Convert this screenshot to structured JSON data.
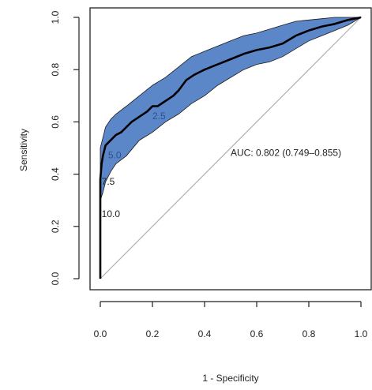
{
  "chart_data": {
    "type": "line",
    "title": "",
    "xlabel": "1 - Specificity",
    "ylabel": "Sensitivity",
    "xlim": [
      0.0,
      1.0
    ],
    "ylim": [
      0.0,
      1.0
    ],
    "xticks": [
      "0.0",
      "0.2",
      "0.4",
      "0.6",
      "0.8",
      "1.0"
    ],
    "yticks": [
      "0.0",
      "0.2",
      "0.4",
      "0.6",
      "0.8",
      "1.0"
    ],
    "grid": false,
    "colors": {
      "band_fill": "#5b87c9",
      "band_edge": "#1a1a1a",
      "roc_line": "#000000",
      "diagonal": "#b0b0b0",
      "axis": "#222222"
    },
    "series": [
      {
        "role": "roc",
        "x": [
          0,
          0,
          0,
          0.005,
          0.01,
          0.02,
          0.04,
          0.06,
          0.08,
          0.1,
          0.12,
          0.15,
          0.18,
          0.2,
          0.22,
          0.25,
          0.28,
          0.3,
          0.33,
          0.36,
          0.4,
          0.45,
          0.5,
          0.55,
          0.6,
          0.65,
          0.7,
          0.75,
          0.8,
          0.85,
          0.9,
          0.95,
          1.0
        ],
        "y": [
          0,
          0.28,
          0.38,
          0.44,
          0.47,
          0.51,
          0.53,
          0.55,
          0.56,
          0.58,
          0.6,
          0.62,
          0.64,
          0.66,
          0.66,
          0.68,
          0.7,
          0.72,
          0.76,
          0.78,
          0.8,
          0.82,
          0.84,
          0.86,
          0.875,
          0.885,
          0.9,
          0.93,
          0.95,
          0.965,
          0.975,
          0.99,
          1.0
        ]
      },
      {
        "role": "ci_upper",
        "x": [
          0,
          0,
          0.01,
          0.02,
          0.04,
          0.06,
          0.1,
          0.15,
          0.2,
          0.25,
          0.3,
          0.35,
          0.4,
          0.45,
          0.5,
          0.55,
          0.6,
          0.65,
          0.7,
          0.75,
          0.8,
          0.85,
          0.9,
          0.95,
          1.0
        ],
        "y": [
          0,
          0.5,
          0.54,
          0.58,
          0.61,
          0.63,
          0.66,
          0.7,
          0.74,
          0.77,
          0.81,
          0.85,
          0.87,
          0.89,
          0.91,
          0.93,
          0.94,
          0.955,
          0.97,
          0.985,
          0.99,
          0.995,
          1.0,
          1.0,
          1.0
        ]
      },
      {
        "role": "ci_lower",
        "x": [
          0,
          0,
          0.01,
          0.02,
          0.04,
          0.06,
          0.1,
          0.15,
          0.2,
          0.25,
          0.3,
          0.35,
          0.4,
          0.45,
          0.5,
          0.55,
          0.6,
          0.65,
          0.7,
          0.75,
          0.8,
          0.85,
          0.9,
          0.95,
          1.0
        ],
        "y": [
          0,
          0.3,
          0.33,
          0.37,
          0.41,
          0.44,
          0.47,
          0.53,
          0.56,
          0.6,
          0.63,
          0.67,
          0.7,
          0.74,
          0.77,
          0.8,
          0.82,
          0.83,
          0.85,
          0.88,
          0.91,
          0.93,
          0.95,
          0.97,
          1.0
        ]
      }
    ],
    "diagonal": {
      "x": [
        0,
        1
      ],
      "y": [
        0,
        1
      ]
    },
    "threshold_labels": [
      {
        "text": "2.5",
        "x": 0.2,
        "y": 0.61,
        "color": "blue"
      },
      {
        "text": "5.0",
        "x": 0.03,
        "y": 0.46,
        "color": "blue"
      },
      {
        "text": "7.5",
        "x": 0.005,
        "y": 0.36,
        "color": "dark"
      },
      {
        "text": "10.0",
        "x": 0.005,
        "y": 0.235,
        "color": "dark"
      }
    ],
    "annotation": {
      "text": "AUC: 0.802 (0.749–0.855)",
      "x": 0.5,
      "y": 0.47
    }
  }
}
